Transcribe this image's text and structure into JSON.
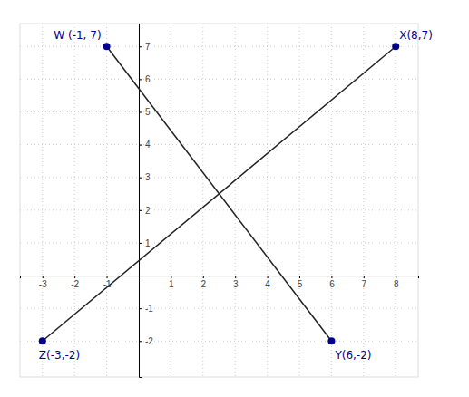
{
  "chart_data": {
    "type": "scatter",
    "series": [
      {
        "type": "line",
        "color": "#222222",
        "x": [
          -1,
          6
        ],
        "values": [
          7,
          -2
        ]
      },
      {
        "type": "line",
        "color": "#222222",
        "x": [
          8,
          -3
        ],
        "values": [
          7,
          -2
        ]
      },
      {
        "type": "scatter",
        "color": "#00008B",
        "x": [
          -1,
          8,
          6,
          -3
        ],
        "values": [
          7,
          7,
          -2,
          -2
        ]
      }
    ],
    "annotations": [
      "W (-1, 7)",
      "X(8,7)",
      "Y(6,-2)",
      "Z(-3,-2)"
    ],
    "xlim": [
      -3.7,
      8.7
    ],
    "ylim": [
      -3.1,
      7.7
    ],
    "xticks": [
      -3,
      -2,
      -1,
      1,
      2,
      3,
      4,
      5,
      6,
      7,
      8
    ],
    "yticks": [
      -2,
      -1,
      1,
      2,
      3,
      4,
      5,
      6,
      7
    ],
    "grid": true
  }
}
